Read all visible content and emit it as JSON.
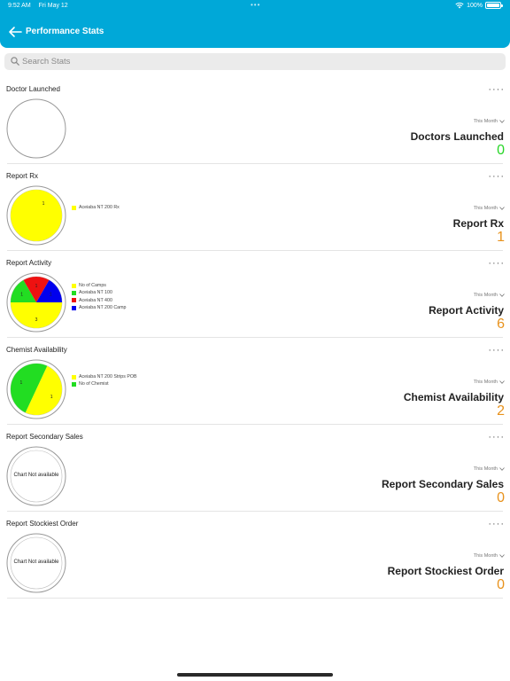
{
  "status_bar": {
    "time": "9:52 AM",
    "date": "Fri May 12",
    "battery": "100%"
  },
  "nav": {
    "title": "Performance Stats"
  },
  "search": {
    "placeholder": "Search Stats"
  },
  "colors": {
    "header": "#00a8d8",
    "green_value": "#27d627",
    "orange_value": "#e8921c",
    "yellow": "#ffff00",
    "green": "#22dd22",
    "red": "#ee1111",
    "blue": "#0000ee"
  },
  "cards": [
    {
      "title": "Doctor Launched",
      "period": "This Month",
      "stat_label": "Doctors Launched",
      "value": "0",
      "value_color": "#27d627",
      "chart": "empty",
      "legend": [],
      "slices": []
    },
    {
      "title": "Report Rx",
      "period": "This Month",
      "stat_label": "Report Rx",
      "value": "1",
      "value_color": "#e8921c",
      "chart": "pie",
      "legend": [
        {
          "label": "Aceiaba NT 200 Rx",
          "color": "#ffff00"
        }
      ],
      "slices": [
        {
          "value": 1,
          "label": "1",
          "color": "#ffff00"
        }
      ]
    },
    {
      "title": "Report Activity",
      "period": "This Month",
      "stat_label": "Report Activity",
      "value": "6",
      "value_color": "#e8921c",
      "chart": "pie",
      "legend": [
        {
          "label": "No of Camps",
          "color": "#ffff00"
        },
        {
          "label": "Aceiaba NT 100",
          "color": "#22dd22"
        },
        {
          "label": "Aceiaba NT 400",
          "color": "#ee1111"
        },
        {
          "label": "Aceiaba NT 200 Camp",
          "color": "#0000ee"
        }
      ],
      "slices": [
        {
          "value": 3,
          "label": "3",
          "color": "#ffff00"
        },
        {
          "value": 1,
          "label": "1",
          "color": "#22dd22"
        },
        {
          "value": 1,
          "label": "1",
          "color": "#ee1111"
        },
        {
          "value": 1,
          "label": "1",
          "color": "#0000ee"
        }
      ]
    },
    {
      "title": "Chemist Availability",
      "period": "This Month",
      "stat_label": "Chemist Availability",
      "value": "2",
      "value_color": "#e8921c",
      "chart": "pie",
      "legend": [
        {
          "label": "Aceiaba NT 200 Strips POB",
          "color": "#ffff00"
        },
        {
          "label": "No of Chemist",
          "color": "#22dd22"
        }
      ],
      "slices": [
        {
          "value": 1,
          "label": "1",
          "color": "#ffff00"
        },
        {
          "value": 1,
          "label": "1",
          "color": "#22dd22"
        }
      ]
    },
    {
      "title": "Report Secondary Sales",
      "period": "This Month",
      "stat_label": "Report Secondary Sales",
      "value": "0",
      "value_color": "#e8921c",
      "chart": "na",
      "na_text": "Chart Not available",
      "legend": [],
      "slices": []
    },
    {
      "title": "Report Stockiest Order",
      "period": "This Month",
      "stat_label": "Report Stockiest Order",
      "value": "0",
      "value_color": "#e8921c",
      "chart": "na",
      "na_text": "Chart Not available",
      "legend": [],
      "slices": []
    }
  ]
}
